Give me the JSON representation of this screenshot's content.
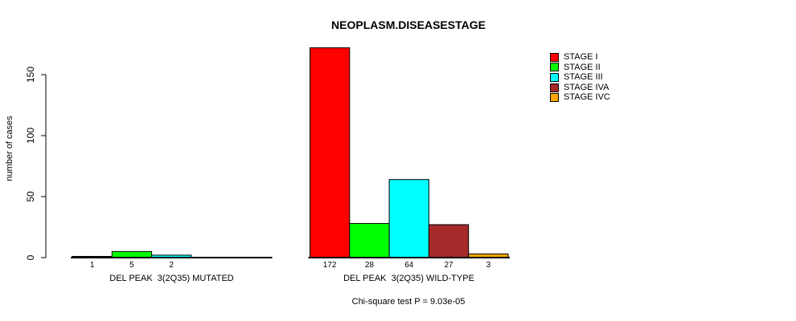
{
  "chart_data": {
    "type": "bar",
    "title": "NEOPLASM.DISEASESTAGE",
    "ylabel": "number of cases",
    "footer": "Chi-square test P = 9.03e-05",
    "yticks": [
      0,
      50,
      100,
      150
    ],
    "ylim": [
      0,
      172
    ],
    "grid": false,
    "legend_position": "top-right",
    "bar_value_labels_shown": true,
    "categories": [
      "DEL PEAK  3(2Q35) MUTATED",
      "DEL PEAK  3(2Q35) WILD-TYPE"
    ],
    "series": [
      {
        "name": "STAGE I",
        "color": "#ff0000",
        "values": [
          1,
          172
        ]
      },
      {
        "name": "STAGE II",
        "color": "#00ff00",
        "values": [
          5,
          28
        ]
      },
      {
        "name": "STAGE III",
        "color": "#00ffff",
        "values": [
          2,
          64
        ]
      },
      {
        "name": "STAGE IVA",
        "color": "#a52a2a",
        "values": [
          0,
          27
        ]
      },
      {
        "name": "STAGE IVC",
        "color": "#ffa500",
        "values": [
          0,
          3
        ]
      }
    ]
  }
}
